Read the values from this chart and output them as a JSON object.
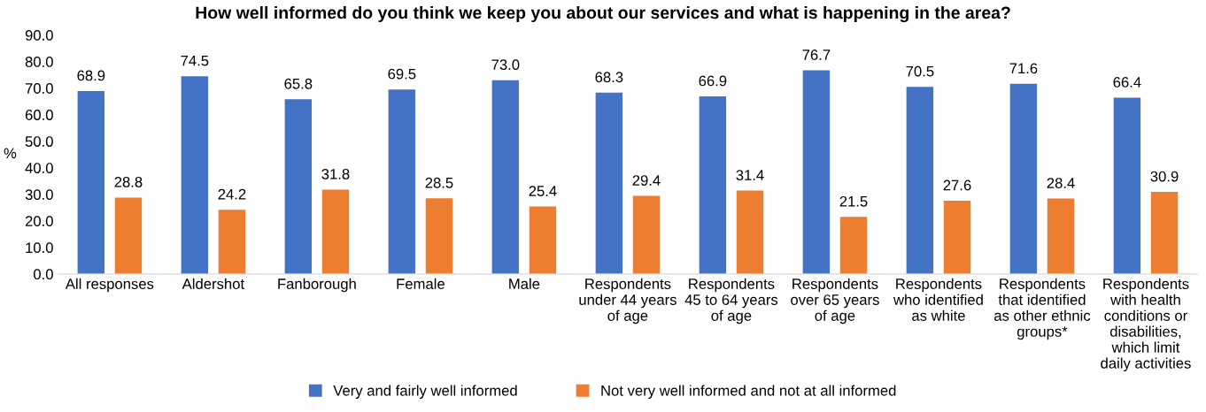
{
  "chart_data": {
    "type": "bar",
    "title": "How well informed do you think we keep you about our services and what is happening in the area?",
    "ylabel": "%",
    "categories": [
      "All responses",
      "Aldershot",
      "Fanborough",
      "Female",
      "Male",
      "Respondents\nunder 44 years\nof age",
      "Respondents\n45 to 64 years\nof age",
      "Respondents\nover 65 years\nof age",
      "Respondents\nwho identified\nas white",
      "Respondents\nthat identified\nas other ethnic\ngroups*",
      "Respondents\nwith health\nconditions or\ndisabilities,\nwhich limit\ndaily activities"
    ],
    "series": [
      {
        "name": "Very and fairly well informed",
        "color": "#4472c4",
        "values": [
          68.9,
          74.5,
          65.8,
          69.5,
          73.0,
          68.3,
          66.9,
          76.7,
          70.5,
          71.6,
          66.4
        ],
        "value_labels": [
          "68.9",
          "74.5",
          "65.8",
          "69.5",
          "73.0",
          "68.3",
          "66.9",
          "76.7",
          "70.5",
          "71.6",
          "66.4"
        ]
      },
      {
        "name": "Not very well informed and not at all informed",
        "color": "#ed7d31",
        "values": [
          28.8,
          24.2,
          31.8,
          28.5,
          25.4,
          29.4,
          31.4,
          21.5,
          27.6,
          28.4,
          30.9
        ],
        "value_labels": [
          "28.8",
          "24.2",
          "31.8",
          "28.5",
          "25.4",
          "29.4",
          "31.4",
          "21.5",
          "27.6",
          "28.4",
          "30.9"
        ]
      }
    ],
    "ylim": [
      0,
      90
    ],
    "yticks": [
      {
        "value": 0,
        "label": "0.0"
      },
      {
        "value": 10,
        "label": "10.0"
      },
      {
        "value": 20,
        "label": "20.0"
      },
      {
        "value": 30,
        "label": "30.0"
      },
      {
        "value": 40,
        "label": "40.0"
      },
      {
        "value": 50,
        "label": "50.0"
      },
      {
        "value": 60,
        "label": "60.0"
      },
      {
        "value": 70,
        "label": "70.0"
      },
      {
        "value": 80,
        "label": "80.0"
      },
      {
        "value": 90,
        "label": "90.0"
      }
    ],
    "grid": false,
    "legend": "bottom"
  }
}
